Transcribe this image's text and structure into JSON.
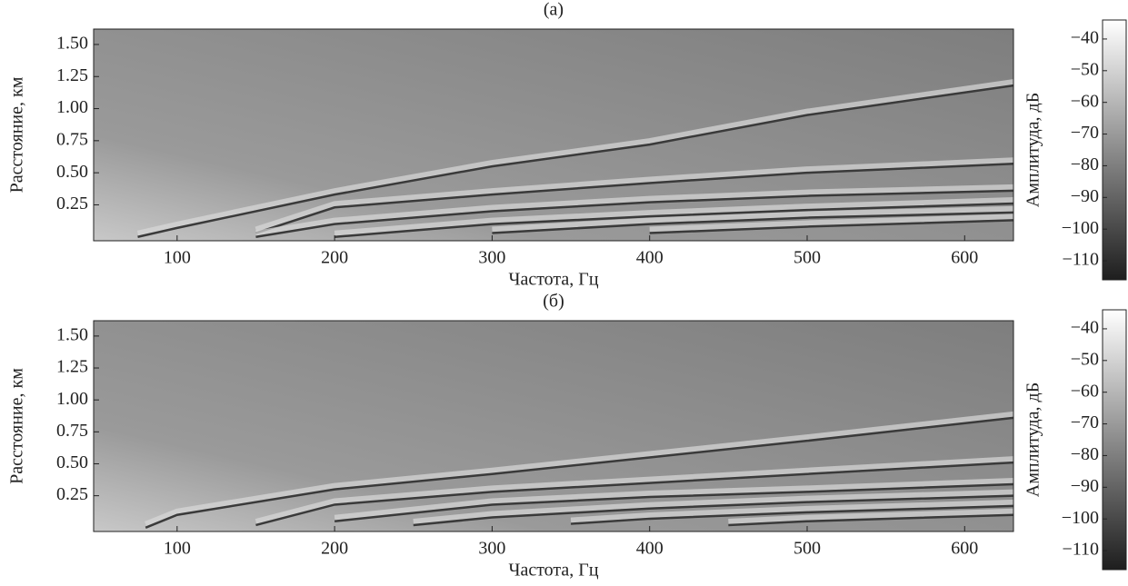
{
  "chart_data": [
    {
      "type": "heatmap",
      "title": "(а)",
      "xlabel": "Частота, Гц",
      "ylabel": "Расстояние, км",
      "xlim": [
        47,
        631
      ],
      "xticks": [
        100,
        200,
        300,
        400,
        500,
        600
      ],
      "ylim": [
        -0.03,
        1.62
      ],
      "yticks": [
        0.25,
        {
          "value": 0.5,
          "label": "0.50"
        },
        0.75,
        {
          "value": 1.0,
          "label": "1.00"
        },
        1.25,
        {
          "value": 1.5,
          "label": "1.50"
        }
      ],
      "colormap": "gray",
      "colorbar": {
        "label": "Амплитуда, дБ",
        "clim": [
          -116,
          -34
        ],
        "ticks": [
          {
            "value": -40,
            "label": "−40"
          },
          {
            "value": -50,
            "label": "−50"
          },
          {
            "value": -60,
            "label": "−60"
          },
          {
            "value": -70,
            "label": "−70"
          },
          {
            "value": -80,
            "label": "−80"
          },
          {
            "value": -90,
            "label": "−90"
          },
          {
            "value": -100,
            "label": "−100"
          },
          {
            "value": -110,
            "label": "−110"
          }
        ]
      },
      "curves": [
        {
          "x": [
            75,
            100,
            200,
            300,
            400,
            500,
            631
          ],
          "values": [
            0.0,
            0.07,
            0.33,
            0.55,
            0.72,
            0.95,
            1.18
          ]
        },
        {
          "x": [
            150,
            200,
            300,
            400,
            500,
            631
          ],
          "values": [
            0.03,
            0.23,
            0.33,
            0.42,
            0.5,
            0.57
          ]
        },
        {
          "x": [
            150,
            200,
            300,
            400,
            500,
            631
          ],
          "values": [
            0.0,
            0.1,
            0.2,
            0.27,
            0.32,
            0.36
          ]
        },
        {
          "x": [
            200,
            300,
            400,
            500,
            631
          ],
          "values": [
            0.0,
            0.1,
            0.16,
            0.21,
            0.26
          ]
        },
        {
          "x": [
            300,
            400,
            500,
            631
          ],
          "values": [
            0.03,
            0.1,
            0.15,
            0.19
          ]
        },
        {
          "x": [
            400,
            500,
            631
          ],
          "values": [
            0.03,
            0.08,
            0.13
          ]
        }
      ]
    },
    {
      "type": "heatmap",
      "title": "(б)",
      "xlabel": "Частота, Гц",
      "ylabel": "Расстояние, км",
      "xlim": [
        47,
        631
      ],
      "xticks": [
        100,
        200,
        300,
        400,
        500,
        600
      ],
      "ylim": [
        -0.03,
        1.62
      ],
      "yticks": [
        0.25,
        {
          "value": 0.5,
          "label": "0.50"
        },
        0.75,
        {
          "value": 1.0,
          "label": "1.00"
        },
        1.25,
        {
          "value": 1.5,
          "label": "1.50"
        }
      ],
      "colormap": "gray",
      "colorbar": {
        "label": "Амплитуда, дБ",
        "clim": [
          -116,
          -34
        ],
        "ticks": [
          {
            "value": -40,
            "label": "−40"
          },
          {
            "value": -50,
            "label": "−50"
          },
          {
            "value": -60,
            "label": "−60"
          },
          {
            "value": -70,
            "label": "−70"
          },
          {
            "value": -80,
            "label": "−80"
          },
          {
            "value": -90,
            "label": "−90"
          },
          {
            "value": -100,
            "label": "−100"
          },
          {
            "value": -110,
            "label": "−110"
          }
        ]
      },
      "curves": [
        {
          "x": [
            80,
            100,
            200,
            300,
            400,
            500,
            631
          ],
          "values": [
            0.0,
            0.1,
            0.3,
            0.42,
            0.55,
            0.68,
            0.86
          ]
        },
        {
          "x": [
            150,
            200,
            300,
            400,
            500,
            631
          ],
          "values": [
            0.02,
            0.18,
            0.28,
            0.35,
            0.42,
            0.51
          ]
        },
        {
          "x": [
            200,
            300,
            400,
            500,
            631
          ],
          "values": [
            0.05,
            0.18,
            0.24,
            0.28,
            0.34
          ]
        },
        {
          "x": [
            250,
            300,
            400,
            500,
            631
          ],
          "values": [
            0.02,
            0.08,
            0.15,
            0.2,
            0.25
          ]
        },
        {
          "x": [
            350,
            400,
            500,
            631
          ],
          "values": [
            0.03,
            0.07,
            0.12,
            0.17
          ]
        },
        {
          "x": [
            450,
            500,
            631
          ],
          "values": [
            0.02,
            0.05,
            0.1
          ]
        }
      ]
    }
  ]
}
